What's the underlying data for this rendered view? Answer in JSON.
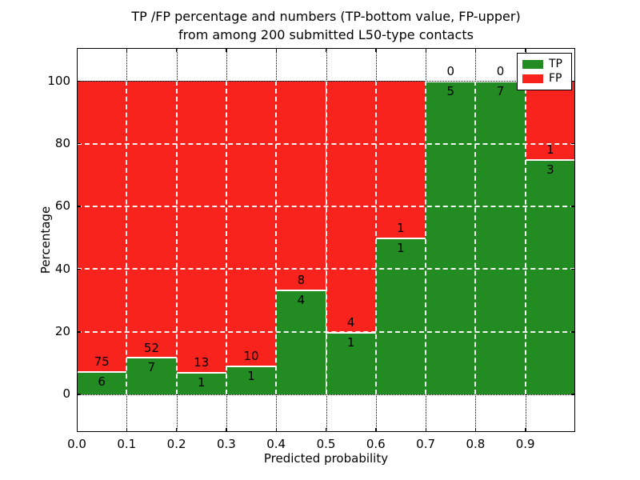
{
  "chart_data": {
    "type": "bar",
    "stacked": true,
    "normalized_to_percent": true,
    "title_line1": "TP /FP percentage and numbers (TP-bottom value, FP-upper)",
    "title_line2": "from among 200 submitted L50-type contacts",
    "xlabel": "Predicted probability",
    "ylabel": "Percentage",
    "categories": [
      "0.0",
      "0.1",
      "0.2",
      "0.3",
      "0.4",
      "0.5",
      "0.6",
      "0.7",
      "0.8",
      "0.9"
    ],
    "bin_width": 0.1,
    "series": [
      {
        "name": "TP",
        "counts": [
          6,
          7,
          1,
          1,
          4,
          1,
          1,
          5,
          7,
          3
        ],
        "percent": [
          7.4,
          11.9,
          7.1,
          9.1,
          33.3,
          20.0,
          50.0,
          100.0,
          100.0,
          75.0
        ]
      },
      {
        "name": "FP",
        "counts": [
          75,
          52,
          13,
          10,
          8,
          4,
          1,
          0,
          0,
          1
        ],
        "percent": [
          92.6,
          88.1,
          92.9,
          90.9,
          66.7,
          80.0,
          50.0,
          0.0,
          0.0,
          25.0
        ]
      }
    ],
    "y_ticks": [
      0,
      20,
      40,
      60,
      80,
      100
    ],
    "y_tick_labels": [
      "0",
      "20",
      "40",
      "60",
      "80",
      "100"
    ],
    "ylim": [
      -12,
      110.5
    ],
    "xlim": [
      0.0,
      1.0
    ],
    "grid": true,
    "legend_position": "upper right",
    "legend": [
      {
        "label": "TP",
        "color": "#228b22"
      },
      {
        "label": "FP",
        "color": "#f8231d"
      }
    ],
    "colors": {
      "tp": "#228b22",
      "fp": "#f8231d",
      "grid_outside_bars": "#000000",
      "grid_over_bars": "#ffffff",
      "segment_separator": "#ffffff",
      "frame": "#000000",
      "background": "#ffffff",
      "text": "#000000"
    }
  }
}
